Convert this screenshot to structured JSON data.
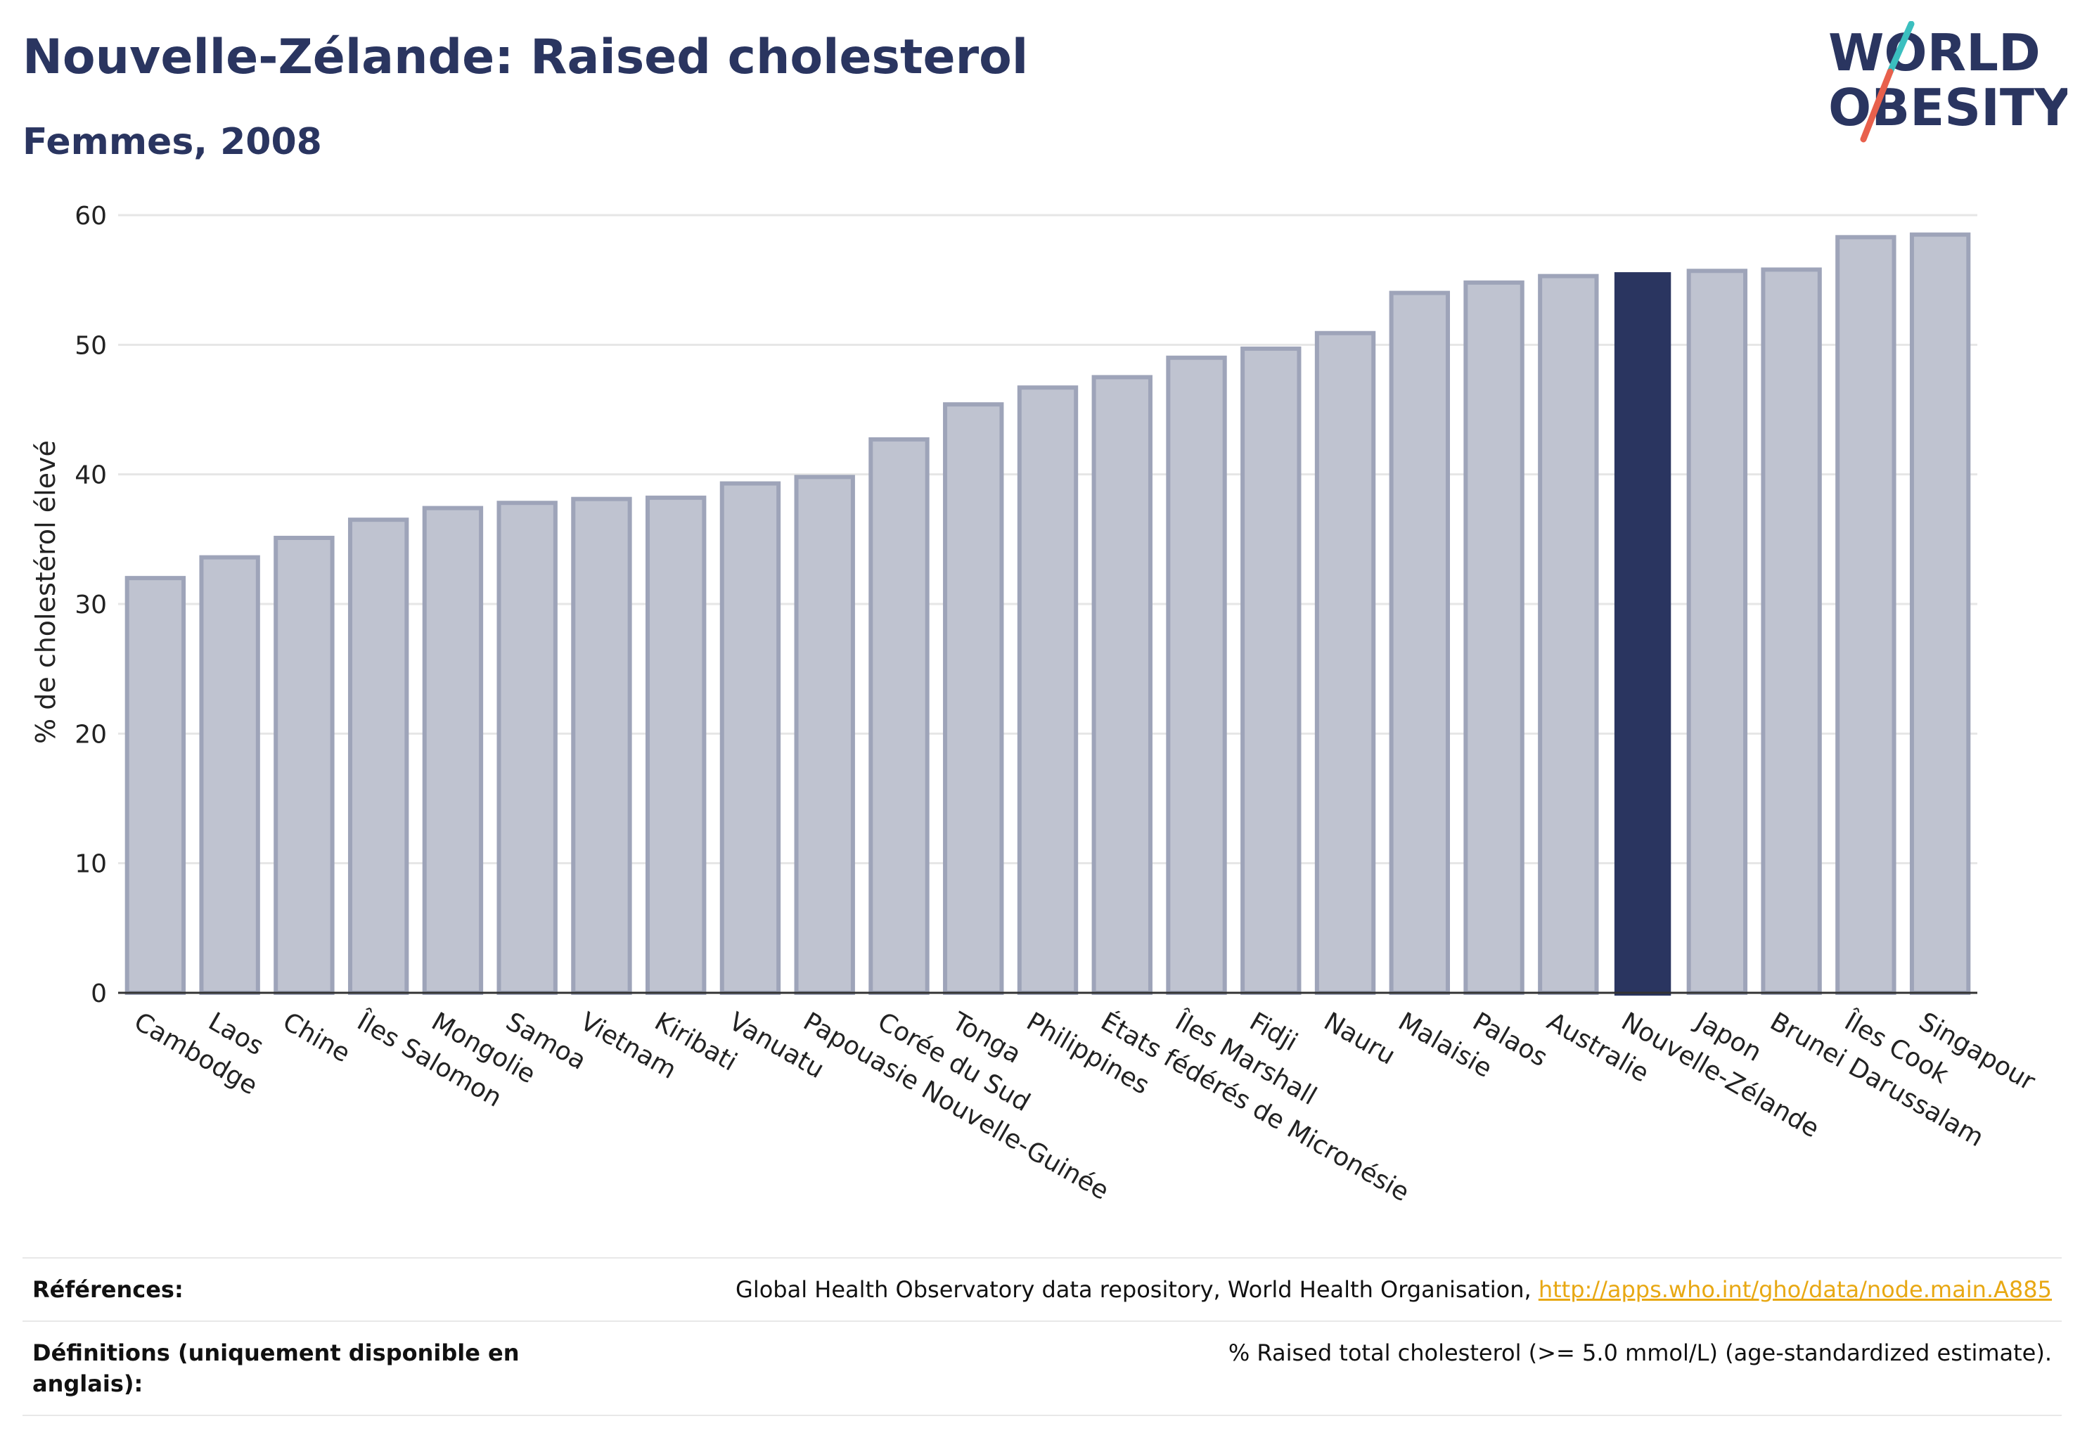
{
  "header": {
    "title": "Nouvelle-Zélande: Raised cholesterol",
    "subtitle": "Femmes, 2008"
  },
  "logo": {
    "line1": "WORLD",
    "line2": "OBESITY",
    "accent_colors": [
      "#3bbfbf",
      "#e8604c"
    ]
  },
  "colors": {
    "bar": "#bfc3d0",
    "bar_border": "#9ea4b9",
    "highlight": "#2a3560",
    "grid": "#e6e6e6",
    "axis_text": "#222222"
  },
  "chart_data": {
    "type": "bar",
    "title": "",
    "ylabel": "% de cholestérol élevé",
    "xlabel": "",
    "ylim": [
      0,
      60
    ],
    "yticks": [
      0,
      10,
      20,
      30,
      40,
      50,
      60
    ],
    "highlight": "Nouvelle-Zélande",
    "categories": [
      "Cambodge",
      "Laos",
      "Chine",
      "Îles Salomon",
      "Mongolie",
      "Samoa",
      "Vietnam",
      "Kiribati",
      "Vanuatu",
      "Papouasie Nouvelle-Guinée",
      "Corée du Sud",
      "Tonga",
      "Philippines",
      "États fédérés de Micronésie",
      "Îles Marshall",
      "Fidji",
      "Nauru",
      "Malaisie",
      "Palaos",
      "Australie",
      "Nouvelle-Zélande",
      "Japon",
      "Brunei Darussalam",
      "Îles Cook",
      "Singapour"
    ],
    "values": [
      32.0,
      33.6,
      35.1,
      36.5,
      37.4,
      37.8,
      38.1,
      38.2,
      39.3,
      39.8,
      42.7,
      45.4,
      46.7,
      47.5,
      49.0,
      49.7,
      50.9,
      54.0,
      54.8,
      55.3,
      55.6,
      55.7,
      55.8,
      58.3,
      58.5
    ],
    "grid": true
  },
  "references": {
    "label": "Références:",
    "text": "Global Health Observatory data repository, World Health Organisation, ",
    "link": "http://apps.who.int/gho/data/node.main.A885"
  },
  "definitions": {
    "label": "Définitions (uniquement disponible en anglais):",
    "text": "% Raised total cholesterol (>= 5.0 mmol/L) (age-standardized estimate)."
  }
}
